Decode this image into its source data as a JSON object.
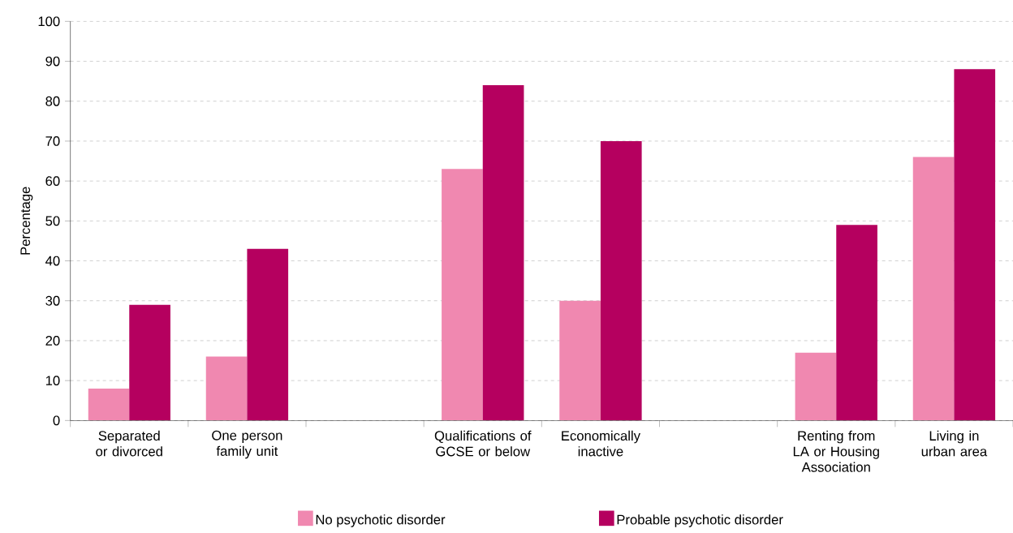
{
  "chart_data": {
    "type": "bar",
    "ylabel": "Percentage",
    "categories": [
      "Separated or divorced",
      "One person family unit",
      null,
      "Qualifications of GCSE or below",
      "Economically inactive",
      null,
      "Renting from LA or Housing Association",
      "Living in urban area"
    ],
    "series": [
      {
        "name": "No psychotic disorder",
        "color": "#f088b0",
        "values": [
          8,
          16,
          null,
          63,
          30,
          null,
          17,
          66
        ]
      },
      {
        "name": "Probable psychotic disorder",
        "color": "#b5005f",
        "values": [
          29,
          43,
          null,
          84,
          70,
          null,
          49,
          88
        ]
      }
    ],
    "ylim": [
      0,
      100
    ],
    "yticks": [
      0,
      10,
      20,
      30,
      40,
      50,
      60,
      70,
      80,
      90,
      100
    ],
    "grid": "y",
    "legend": "bottom"
  }
}
